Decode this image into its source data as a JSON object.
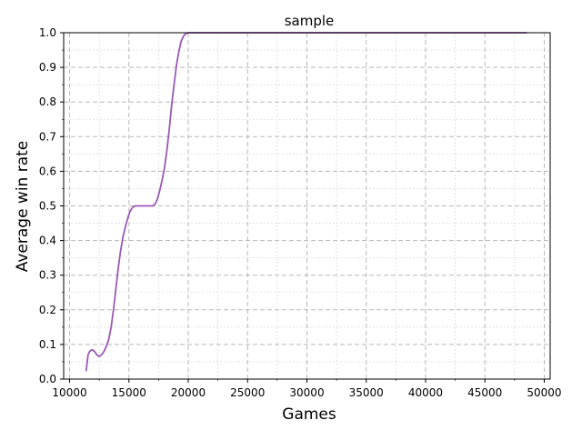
{
  "chart_data": {
    "type": "line",
    "title": "sample",
    "xlabel": "Games",
    "ylabel": "Average win rate",
    "xlim": [
      9500,
      50500
    ],
    "ylim": [
      0,
      1
    ],
    "xticks": [
      10000,
      15000,
      20000,
      25000,
      30000,
      35000,
      40000,
      45000,
      50000
    ],
    "yticks": [
      0.0,
      0.1,
      0.2,
      0.3,
      0.4,
      0.5,
      0.6,
      0.7,
      0.8,
      0.9,
      1.0
    ],
    "grid": true,
    "series": [
      {
        "color": "#9b59b6",
        "x": [
          11400,
          11550,
          11700,
          11900,
          12100,
          12300,
          12500,
          12700,
          12900,
          13100,
          13300,
          13500,
          13700,
          13900,
          14100,
          14300,
          14500,
          14700,
          14900,
          15100,
          15300,
          15500,
          15700,
          16000,
          16500,
          17000,
          17200,
          17400,
          17600,
          17800,
          18000,
          18200,
          18400,
          18600,
          18800,
          19000,
          19200,
          19400,
          19600,
          19800,
          20000,
          20100,
          20200,
          20500,
          21000,
          22000,
          25000,
          30000,
          35000,
          40000,
          45000,
          48500
        ],
        "y": [
          0.025,
          0.07,
          0.08,
          0.085,
          0.08,
          0.07,
          0.065,
          0.07,
          0.08,
          0.095,
          0.115,
          0.15,
          0.2,
          0.26,
          0.32,
          0.37,
          0.41,
          0.44,
          0.465,
          0.485,
          0.495,
          0.5,
          0.5,
          0.5,
          0.5,
          0.5,
          0.505,
          0.52,
          0.545,
          0.575,
          0.61,
          0.66,
          0.72,
          0.79,
          0.85,
          0.905,
          0.945,
          0.975,
          0.99,
          0.998,
          1.0,
          1.0,
          1.0,
          1.0,
          1.0,
          1.0,
          1.0,
          1.0,
          1.0,
          1.0,
          1.0,
          1.0
        ]
      }
    ]
  }
}
